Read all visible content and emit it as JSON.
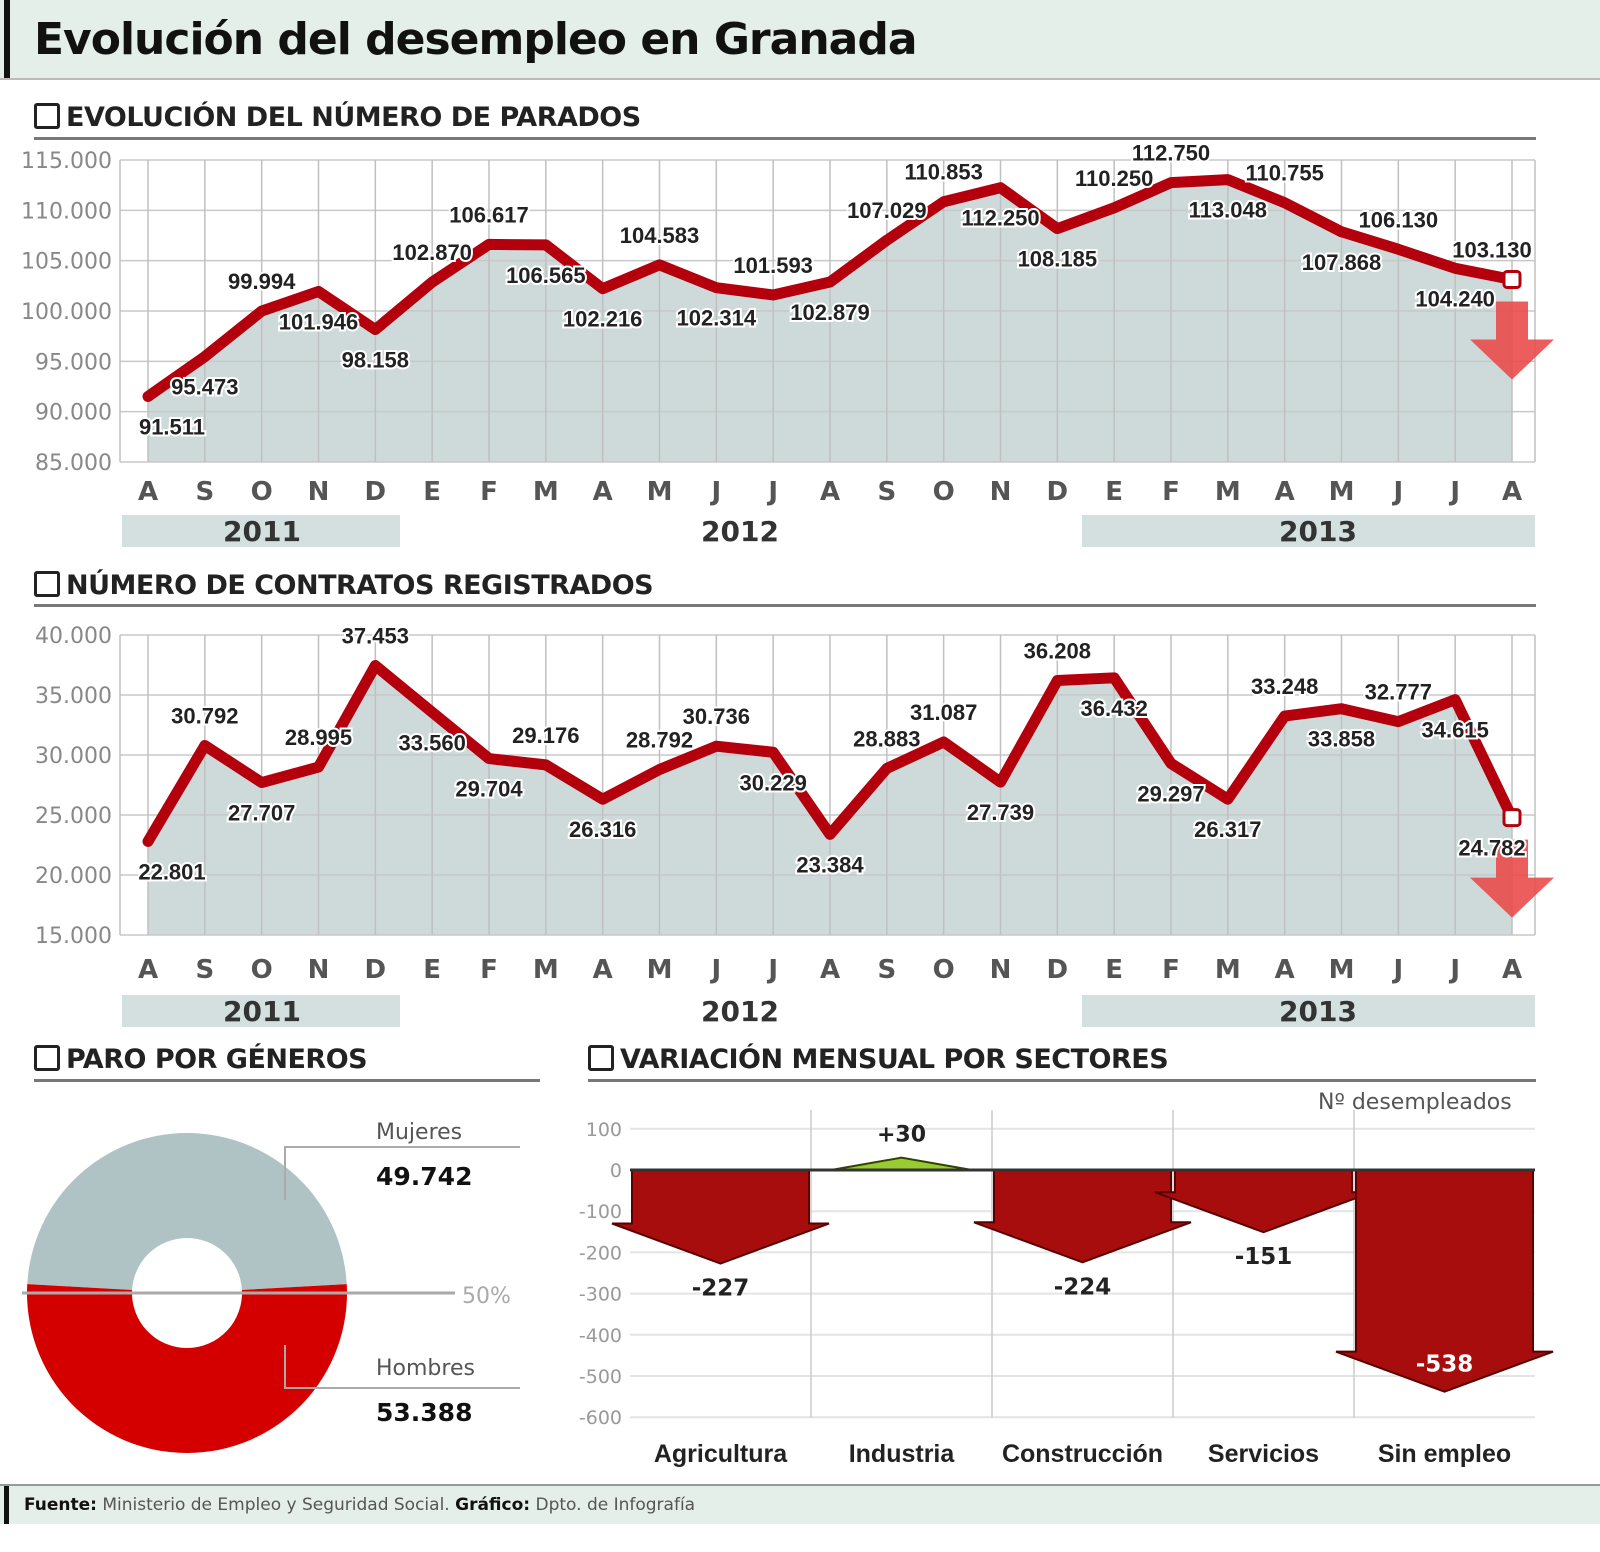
{
  "title": "Evolución del desempleo en Granada",
  "colors": {
    "line": "#b3000c",
    "area": "#cddad9",
    "negative": "#a80d0d",
    "positive": "#99cc33",
    "women": "#b0c3c4",
    "men": "#d40000",
    "arrow": "#ea4b4b"
  },
  "chart_data": [
    {
      "type": "line",
      "title": "EVOLUCIÓN DEL NÚMERO DE PARADOS",
      "icon": "checkbox-square-icon",
      "categories": [
        "A",
        "S",
        "O",
        "N",
        "D",
        "E",
        "F",
        "M",
        "A",
        "M",
        "J",
        "J",
        "A",
        "S",
        "O",
        "N",
        "D",
        "E",
        "F",
        "M",
        "A",
        "M",
        "J",
        "J",
        "A"
      ],
      "years": [
        {
          "label": "2011",
          "band": true
        },
        {
          "label": "2012",
          "band": false
        },
        {
          "label": "2013",
          "band": true
        }
      ],
      "values": [
        91511,
        95473,
        99994,
        101946,
        98158,
        102870,
        106617,
        106565,
        102216,
        104583,
        102314,
        101593,
        102879,
        107029,
        110853,
        112250,
        108185,
        110250,
        112750,
        113048,
        110755,
        107868,
        106130,
        104240,
        103130
      ],
      "yticks": [
        "85.000",
        "90.000",
        "95.000",
        "100.000",
        "105.000",
        "110.000",
        "115.000"
      ],
      "ylim": [
        85000,
        115000
      ],
      "grid": true,
      "end_marker": "down-arrow"
    },
    {
      "type": "line",
      "title": "NÚMERO DE CONTRATOS REGISTRADOS",
      "icon": "checkbox-square-icon",
      "categories": [
        "A",
        "S",
        "O",
        "N",
        "D",
        "E",
        "F",
        "M",
        "A",
        "M",
        "J",
        "J",
        "A",
        "S",
        "O",
        "N",
        "D",
        "E",
        "F",
        "M",
        "A",
        "M",
        "J",
        "J",
        "A"
      ],
      "years": [
        {
          "label": "2011",
          "band": true
        },
        {
          "label": "2012",
          "band": false
        },
        {
          "label": "2013",
          "band": true
        }
      ],
      "values": [
        22801,
        30792,
        27707,
        28995,
        37453,
        33560,
        29704,
        29176,
        26316,
        28792,
        30736,
        30229,
        23384,
        28883,
        31087,
        27739,
        36208,
        36432,
        29297,
        26317,
        33248,
        33858,
        32777,
        34615,
        24782
      ],
      "yticks": [
        "15.000",
        "20.000",
        "25.000",
        "30.000",
        "35.000",
        "40.000"
      ],
      "ylim": [
        15000,
        40000
      ],
      "grid": true,
      "end_marker": "down-arrow"
    },
    {
      "type": "pie",
      "title": "PARO POR GÉNEROS",
      "donut": true,
      "slices": [
        {
          "label": "Mujeres",
          "value": 49742,
          "value_label": "49.742"
        },
        {
          "label": "Hombres",
          "value": 53388,
          "value_label": "53.388"
        }
      ],
      "annotation": "50%"
    },
    {
      "type": "bar",
      "title": "VARIACIÓN MENSUAL POR SECTORES",
      "ylabel": "Nº desempleados",
      "categories": [
        "Agricultura",
        "Industria",
        "Construcción",
        "Servicios",
        "Sin empleo"
      ],
      "values": [
        -227,
        30,
        -224,
        -151,
        -538
      ],
      "value_labels": [
        "-227",
        "+30",
        "-224",
        "-151",
        "-538"
      ],
      "yticks": [
        "100",
        "0",
        "-100",
        "-200",
        "-300",
        "-400",
        "-500",
        "-600"
      ],
      "ylim": [
        -600,
        100
      ],
      "grid": true
    }
  ],
  "footer": {
    "source_label": "Fuente:",
    "source": "Ministerio de Empleo y Seguridad Social.",
    "graphic_label": "Gráfico:",
    "graphic": "Dpto. de Infografía"
  }
}
